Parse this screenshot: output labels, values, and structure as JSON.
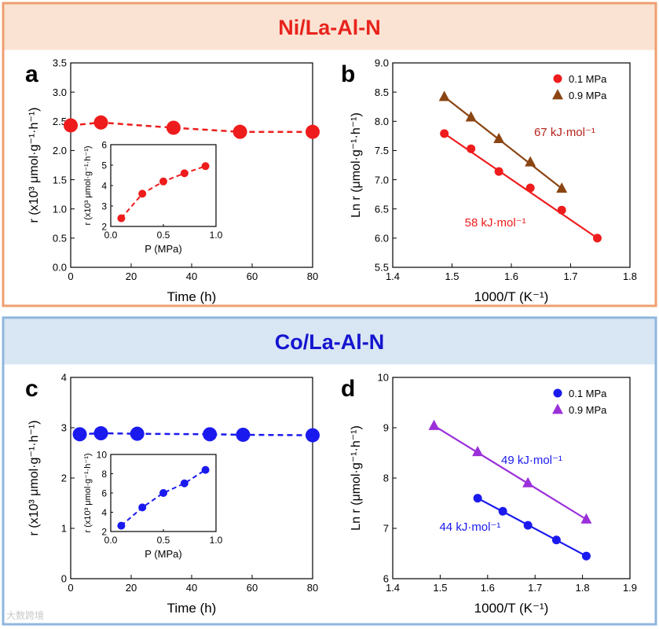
{
  "panels": [
    {
      "title": "Ni/La-Al-N",
      "bg": "#fbe3d4",
      "border": "#ef9f70",
      "title_color": "#e8231c"
    },
    {
      "title": "Co/La-Al-N",
      "bg": "#d9e6f4",
      "border": "#8fb6dd",
      "title_color": "#1414cf"
    }
  ],
  "watermark": "大数跨境",
  "chart_data": [
    {
      "id": "a",
      "letter": "a",
      "type": "scatter",
      "color": "#ee1c1c",
      "dashed": true,
      "x": [
        0,
        10,
        34,
        56,
        80
      ],
      "y": [
        2.43,
        2.48,
        2.39,
        2.32,
        2.32
      ],
      "xlim": [
        0,
        80
      ],
      "ylim": [
        0.0,
        3.5
      ],
      "xticks": [
        "0",
        "20",
        "40",
        "60",
        "80"
      ],
      "yticks": [
        "0.0",
        "0.5",
        "1.0",
        "1.5",
        "2.0",
        "2.5",
        "3.0",
        "3.5"
      ],
      "xlabel": "Time (h)",
      "ylabel": "r (x10³ μmol·g⁻¹·h⁻¹)",
      "inset": {
        "x": [
          0.1,
          0.3,
          0.5,
          0.7,
          0.9
        ],
        "y": [
          2.4,
          3.6,
          4.2,
          4.6,
          4.95
        ],
        "xlim": [
          0.0,
          1.0
        ],
        "ylim": [
          2,
          6
        ],
        "xticks": [
          "0.0",
          "0.5",
          "1.0"
        ],
        "yticks": [
          "2",
          "3",
          "4",
          "5",
          "6"
        ],
        "xlabel": "P (MPa)",
        "ylabel": "r (x10³ μmol·g⁻¹·h⁻¹)"
      }
    },
    {
      "id": "b",
      "letter": "b",
      "type": "scatter",
      "xlim": [
        1.4,
        1.8
      ],
      "ylim": [
        5.5,
        9.0
      ],
      "xticks": [
        "1.4",
        "1.5",
        "1.6",
        "1.7",
        "1.8"
      ],
      "yticks": [
        "5.5",
        "6.0",
        "6.5",
        "7.0",
        "7.5",
        "8.0",
        "8.5",
        "9.0"
      ],
      "xlabel": "1000/T (K⁻¹)",
      "ylabel": "Ln r (μmol·g⁻¹·h⁻¹)",
      "series": [
        {
          "name": "0.1 MPa",
          "marker": "circle",
          "color": "#ee1c1c",
          "line_color": "#ee1c1c",
          "x": [
            1.487,
            1.532,
            1.579,
            1.632,
            1.685,
            1.745
          ],
          "y": [
            7.79,
            7.53,
            7.14,
            6.86,
            6.48,
            6.0
          ]
        },
        {
          "name": "0.9 MPa",
          "marker": "triangle",
          "color": "#8b4513",
          "line_color": "#8b4513",
          "x": [
            1.487,
            1.532,
            1.579,
            1.632,
            1.685
          ],
          "y": [
            8.42,
            8.07,
            7.7,
            7.3,
            6.85
          ]
        }
      ],
      "annotations": [
        {
          "text": "67 kJ·mol⁻¹",
          "color": "#b5221c",
          "x": 1.69,
          "y": 7.75
        },
        {
          "text": "58 kJ·mol⁻¹",
          "color": "#ee1c1c",
          "x": 1.573,
          "y": 6.2
        }
      ]
    },
    {
      "id": "c",
      "letter": "c",
      "type": "scatter",
      "color": "#1a1aee",
      "dashed": true,
      "x": [
        3,
        10,
        22,
        46,
        57,
        80
      ],
      "y": [
        2.87,
        2.89,
        2.88,
        2.87,
        2.86,
        2.85
      ],
      "xlim": [
        0,
        80
      ],
      "ylim": [
        0,
        4
      ],
      "xticks": [
        "0",
        "20",
        "40",
        "60",
        "80"
      ],
      "yticks": [
        "0",
        "1",
        "2",
        "3",
        "4"
      ],
      "xlabel": "Time (h)",
      "ylabel": "r (x10³ μmol·g⁻¹·h⁻¹)",
      "inset": {
        "x": [
          0.1,
          0.3,
          0.5,
          0.7,
          0.9
        ],
        "y": [
          2.6,
          4.5,
          6.0,
          7.0,
          8.4
        ],
        "xlim": [
          0.0,
          1.0
        ],
        "ylim": [
          2,
          10
        ],
        "xticks": [
          "0.0",
          "0.5",
          "1.0"
        ],
        "yticks": [
          "2",
          "4",
          "6",
          "8",
          "10"
        ],
        "xlabel": "P (MPa)",
        "ylabel": "r (x10³ μmol·g⁻¹·h⁻¹)"
      }
    },
    {
      "id": "d",
      "letter": "d",
      "type": "scatter",
      "xlim": [
        1.4,
        1.9
      ],
      "ylim": [
        6,
        10
      ],
      "xticks": [
        "1.4",
        "1.5",
        "1.6",
        "1.7",
        "1.8",
        "1.9"
      ],
      "yticks": [
        "6",
        "7",
        "8",
        "9",
        "10"
      ],
      "xlabel": "1000/T (K⁻¹)",
      "ylabel": "Ln r (μmol·g⁻¹·h⁻¹)",
      "series": [
        {
          "name": "0.1 MPa",
          "marker": "circle",
          "color": "#1a1aee",
          "line_color": "#1a1aee",
          "x": [
            1.579,
            1.632,
            1.685,
            1.745,
            1.808
          ],
          "y": [
            7.6,
            7.34,
            7.06,
            6.77,
            6.45
          ]
        },
        {
          "name": "0.9 MPa",
          "marker": "triangle",
          "color": "#9b30d9",
          "line_color": "#9b30d9",
          "x": [
            1.487,
            1.579,
            1.685,
            1.808
          ],
          "y": [
            9.04,
            8.52,
            7.9,
            7.18
          ]
        }
      ],
      "annotations": [
        {
          "text": "49 kJ·mol⁻¹",
          "color": "#1a1aee",
          "x": 1.693,
          "y": 8.28
        },
        {
          "text": "44 kJ·mol⁻¹",
          "color": "#1a1aee",
          "x": 1.563,
          "y": 6.95
        }
      ]
    }
  ]
}
